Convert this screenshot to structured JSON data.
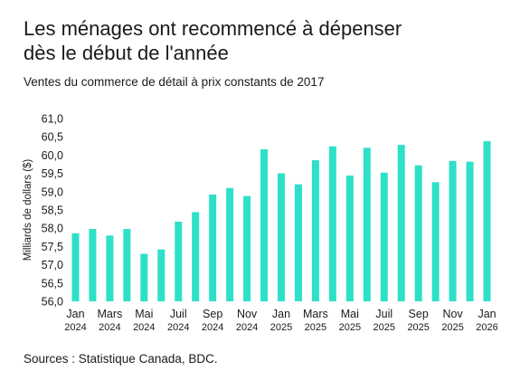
{
  "header": {
    "title": "Les ménages ont recommencé à dépenser\ndès le début de l'année",
    "subtitle": "Ventes du commerce de détail à prix constants de 2017"
  },
  "footer": {
    "source": "Sources : Statistique Canada, BDC."
  },
  "colors": {
    "bar": "#2ee0c8",
    "text": "#1a1a1a",
    "background": "#ffffff"
  },
  "chart_data": {
    "type": "bar",
    "title": "Les ménages ont recommencé à dépenser dès le début de l'année",
    "subtitle": "Ventes du commerce de détail à prix constants de 2017",
    "xlabel": "",
    "ylabel": "Milliards de dollars ($)",
    "ylim": [
      56.0,
      61.0
    ],
    "y_ticks": [
      "56,0",
      "56,5",
      "57,0",
      "57,5",
      "58,0",
      "58,5",
      "59,0",
      "59,5",
      "60,0",
      "60,5",
      "61,0"
    ],
    "grid": false,
    "legend": "none",
    "categories": [
      "Jan 2024",
      "Fév 2024",
      "Mars 2024",
      "Avr 2024",
      "Mai 2024",
      "Juin 2024",
      "Juil 2024",
      "Août 2024",
      "Sep 2024",
      "Oct 2024",
      "Nov 2024",
      "Déc 2024",
      "Jan 2025",
      "Fév 2025",
      "Mars 2025",
      "Avr 2025",
      "Mai 2025",
      "Juin 2025",
      "Juil 2025",
      "Août 2025",
      "Sep 2025",
      "Oct 2025",
      "Nov 2025",
      "Déc 2025",
      "Jan 2026"
    ],
    "values": [
      57.86,
      57.98,
      57.8,
      57.98,
      57.3,
      57.42,
      58.18,
      58.44,
      58.92,
      59.1,
      58.88,
      60.16,
      59.5,
      59.2,
      59.86,
      60.24,
      59.44,
      60.2,
      59.52,
      60.28,
      59.72,
      59.26,
      59.84,
      59.82,
      60.38
    ],
    "x_tick_labels": [
      {
        "month": "Jan",
        "year": "2024"
      },
      {
        "month": "Mars",
        "year": "2024"
      },
      {
        "month": "Mai",
        "year": "2024"
      },
      {
        "month": "Juil",
        "year": "2024"
      },
      {
        "month": "Sep",
        "year": "2024"
      },
      {
        "month": "Nov",
        "year": "2024"
      },
      {
        "month": "Jan",
        "year": "2025"
      },
      {
        "month": "Mars",
        "year": "2025"
      },
      {
        "month": "Mai",
        "year": "2025"
      },
      {
        "month": "Juil",
        "year": "2025"
      },
      {
        "month": "Sep",
        "year": "2025"
      },
      {
        "month": "Nov",
        "year": "2025"
      },
      {
        "month": "Jan",
        "year": "2026"
      }
    ]
  }
}
